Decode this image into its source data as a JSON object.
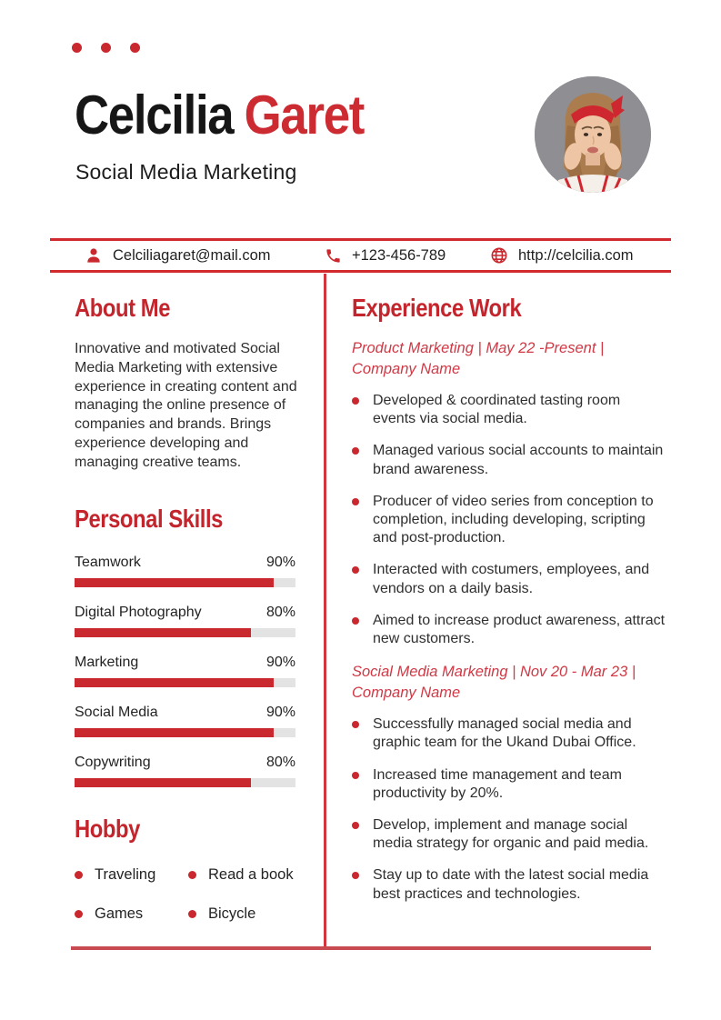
{
  "colors": {
    "accent": "#c4252c",
    "accent_bright": "#d2292f",
    "accent_italic": "#d03945",
    "bar_fill": "#c9282e",
    "bar_track": "#e3e3e3",
    "photo_background": "#8e8e93"
  },
  "header": {
    "name_first": "Celcilia",
    "name_last": "Garet",
    "role": "Social Media Marketing"
  },
  "contact": {
    "email": "Celciliagaret@mail.com",
    "phone": "+123-456-789",
    "website": "http://celcilia.com",
    "icons": [
      "person-icon",
      "phone-icon",
      "globe-icon"
    ]
  },
  "about": {
    "heading": "About Me",
    "text": "Innovative and motivated Social Media Marketing with extensive experience in creating content and managing the online presence of companies and brands. Brings experience developing and managing creative teams."
  },
  "skills": {
    "heading": "Personal Skills",
    "items": [
      {
        "label": "Teamwork",
        "percent_label": "90%",
        "value": 90
      },
      {
        "label": "Digital Photography",
        "percent_label": "80%",
        "value": 80
      },
      {
        "label": "Marketing",
        "percent_label": "90%",
        "value": 90
      },
      {
        "label": "Social Media",
        "percent_label": "90%",
        "value": 90
      },
      {
        "label": "Copywriting",
        "percent_label": "80%",
        "value": 80
      }
    ]
  },
  "hobby": {
    "heading": "Hobby",
    "items": [
      "Traveling",
      "Read a book",
      "Games",
      "Bicycle"
    ]
  },
  "experience": {
    "heading": "Experience Work",
    "jobs": [
      {
        "title_line1": "Product Marketing | May 22 -Present |",
        "title_line2": "Company Name",
        "bullets": [
          "Developed & coordinated tasting room events via social media.",
          "Managed various social accounts to maintain brand awareness.",
          "Producer of video series from conception to completion, including developing, scripting and post-production.",
          "Interacted with costumers, employees, and vendors on a daily basis.",
          "Aimed to increase product awareness, attract new customers."
        ]
      },
      {
        "title_line1": "Social Media Marketing | Nov 20 - Mar 23 |",
        "title_line2": "Company Name",
        "bullets": [
          "Successfully managed social media and graphic team for the Ukand Dubai Office.",
          "Increased time management and team productivity by 20%.",
          "Develop, implement and manage social media strategy for organic and paid media.",
          "Stay up to date with the latest social media best practices and technologies."
        ]
      }
    ]
  }
}
